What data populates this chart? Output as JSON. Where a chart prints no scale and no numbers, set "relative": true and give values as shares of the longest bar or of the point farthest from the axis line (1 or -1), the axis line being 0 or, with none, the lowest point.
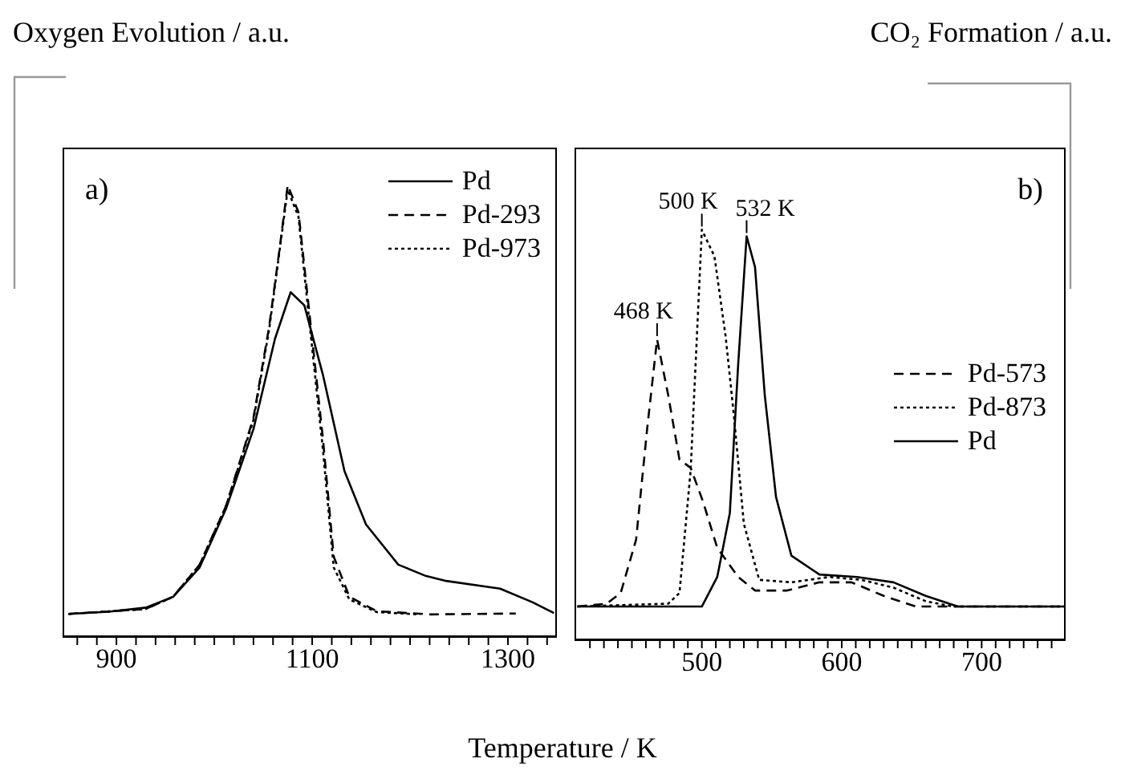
{
  "chart_data": [
    {
      "type": "line",
      "ylabel": "Oxygen Evolution / a.u.",
      "xlabel": "Temperature / K",
      "relative": true,
      "xlim": [
        845,
        1350
      ],
      "xticks": [
        {
          "value": 860,
          "label": null
        },
        {
          "value": 880,
          "label": null
        },
        900,
        {
          "value": 920,
          "label": null
        },
        {
          "value": 940,
          "label": null
        },
        {
          "value": 960,
          "label": null
        },
        {
          "value": 980,
          "label": null
        },
        {
          "value": 1000,
          "label": null
        },
        {
          "value": 1020,
          "label": null
        },
        {
          "value": 1040,
          "label": null
        },
        {
          "value": 1060,
          "label": null
        },
        {
          "value": 1080,
          "label": null
        },
        1100,
        {
          "value": 1120,
          "label": null
        },
        {
          "value": 1140,
          "label": null
        },
        {
          "value": 1160,
          "label": null
        },
        {
          "value": 1180,
          "label": null
        },
        {
          "value": 1200,
          "label": null
        },
        {
          "value": 1220,
          "label": null
        },
        {
          "value": 1240,
          "label": null
        },
        {
          "value": 1260,
          "label": null
        },
        {
          "value": 1280,
          "label": null
        },
        1300,
        {
          "value": 1320,
          "label": null
        },
        {
          "value": 1340,
          "label": null
        }
      ],
      "legend": "top right",
      "marker": "none",
      "tick_labels": "x",
      "annotations": [
        "a)"
      ],
      "series": [
        {
          "name": "Pd",
          "color": "#000000",
          "line_style": "solid",
          "x": [
            851,
            892,
            930,
            958,
            985,
            1012,
            1040,
            1062,
            1078,
            1092,
            1111,
            1133,
            1155,
            1188,
            1215,
            1237,
            1292,
            1325,
            1347
          ],
          "values": [
            0.051,
            0.056,
            0.065,
            0.089,
            0.154,
            0.284,
            0.46,
            0.66,
            0.763,
            0.734,
            0.58,
            0.367,
            0.249,
            0.16,
            0.136,
            0.124,
            0.107,
            0.077,
            0.053
          ]
        },
        {
          "name": "Pd-293",
          "color": "#000000",
          "line_style": "dashed",
          "x": [
            851,
            930,
            958,
            985,
            1012,
            1040,
            1056,
            1067,
            1075,
            1086,
            1097,
            1111,
            1122,
            1138,
            1166,
            1221,
            1308
          ],
          "values": [
            0.051,
            0.062,
            0.089,
            0.16,
            0.29,
            0.485,
            0.686,
            0.864,
            1.0,
            0.94,
            0.72,
            0.438,
            0.178,
            0.089,
            0.057,
            0.05,
            0.052
          ]
        },
        {
          "name": "Pd-973",
          "color": "#000000",
          "line_style": "dotted",
          "x": [
            851,
            930,
            958,
            985,
            1012,
            1040,
            1056,
            1067,
            1075,
            1086,
            1097,
            1111,
            1122,
            1138,
            1166,
            1210
          ],
          "values": [
            0.051,
            0.062,
            0.089,
            0.16,
            0.29,
            0.48,
            0.68,
            0.86,
            0.99,
            0.93,
            0.7,
            0.414,
            0.154,
            0.083,
            0.055,
            0.05
          ]
        }
      ]
    },
    {
      "type": "line",
      "ylabel": "CO₂ Formation / a.u.",
      "relative": true,
      "xlim": [
        409,
        760
      ],
      "xticks": [
        {
          "value": 420,
          "label": null
        },
        {
          "value": 430,
          "label": null
        },
        {
          "value": 440,
          "label": null
        },
        {
          "value": 450,
          "label": null
        },
        {
          "value": 460,
          "label": null
        },
        {
          "value": 470,
          "label": null
        },
        {
          "value": 480,
          "label": null
        },
        {
          "value": 490,
          "label": null
        },
        500,
        {
          "value": 510,
          "label": null
        },
        {
          "value": 520,
          "label": null
        },
        {
          "value": 530,
          "label": null
        },
        {
          "value": 540,
          "label": null
        },
        {
          "value": 550,
          "label": null
        },
        {
          "value": 560,
          "label": null
        },
        {
          "value": 570,
          "label": null
        },
        {
          "value": 580,
          "label": null
        },
        {
          "value": 590,
          "label": null
        },
        600,
        {
          "value": 610,
          "label": null
        },
        {
          "value": 620,
          "label": null
        },
        {
          "value": 630,
          "label": null
        },
        {
          "value": 640,
          "label": null
        },
        {
          "value": 650,
          "label": null
        },
        {
          "value": 660,
          "label": null
        },
        {
          "value": 670,
          "label": null
        },
        {
          "value": 680,
          "label": null
        },
        {
          "value": 690,
          "label": null
        },
        700,
        {
          "value": 710,
          "label": null
        },
        {
          "value": 720,
          "label": null
        },
        {
          "value": 730,
          "label": null
        },
        {
          "value": 740,
          "label": null
        },
        {
          "value": 750,
          "label": null
        }
      ],
      "legend": "right",
      "marker": "none",
      "tick_labels": "x",
      "annotations": [
        "b)",
        {
          "text": "468 K",
          "x": 468,
          "y": 0.733
        },
        {
          "text": "500 K",
          "x": 500,
          "y": 1.0
        },
        {
          "text": "532 K",
          "x": 532,
          "y": 0.984
        }
      ],
      "series": [
        {
          "name": "Pd-573",
          "color": "#000000",
          "line_style": "dashed",
          "x": [
            411,
            432,
            442,
            453,
            461,
            468,
            476,
            484,
            492,
            501,
            511,
            526,
            538,
            561,
            584,
            607,
            630,
            653,
            668,
            760
          ],
          "values": [
            0.082,
            0.089,
            0.115,
            0.245,
            0.518,
            0.733,
            0.596,
            0.44,
            0.42,
            0.336,
            0.225,
            0.154,
            0.121,
            0.121,
            0.141,
            0.141,
            0.108,
            0.082,
            0.082,
            0.082
          ]
        },
        {
          "name": "Pd-873",
          "color": "#000000",
          "line_style": "dotted",
          "x": [
            411,
            476,
            484,
            492,
            500,
            509,
            517,
            523,
            530,
            541,
            564,
            591,
            614,
            637,
            660,
            680,
            760
          ],
          "values": [
            0.082,
            0.089,
            0.115,
            0.414,
            1.0,
            0.935,
            0.74,
            0.544,
            0.284,
            0.147,
            0.141,
            0.154,
            0.147,
            0.128,
            0.095,
            0.082,
            0.082
          ]
        },
        {
          "name": "Pd",
          "color": "#000000",
          "line_style": "solid",
          "x": [
            411,
            500,
            511,
            520,
            526,
            532,
            538,
            545,
            553,
            564,
            584,
            611,
            637,
            660,
            683,
            760
          ],
          "values": [
            0.082,
            0.082,
            0.154,
            0.31,
            0.674,
            0.984,
            0.909,
            0.596,
            0.349,
            0.206,
            0.16,
            0.154,
            0.141,
            0.108,
            0.082,
            0.082
          ]
        }
      ]
    }
  ]
}
